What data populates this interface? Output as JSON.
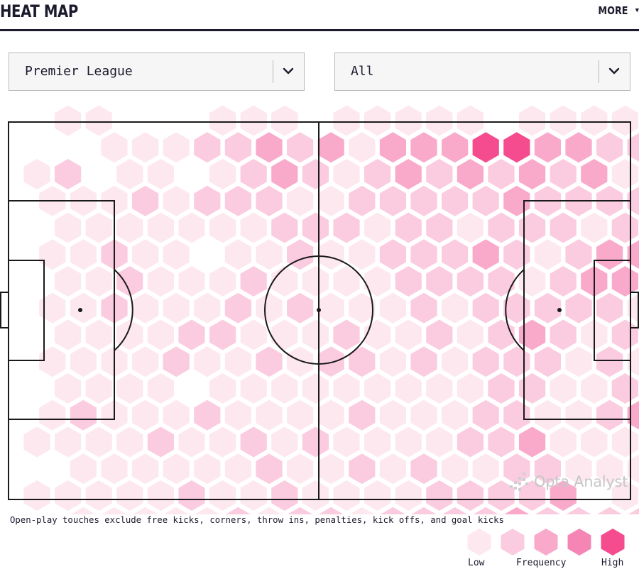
{
  "header": {
    "title": "HEAT MAP",
    "more_label": "MORE"
  },
  "filters": {
    "competition": {
      "value": "Premier League"
    },
    "scope": {
      "value": "All"
    }
  },
  "heatmap": {
    "levels": [
      0,
      1,
      2,
      3,
      4,
      5
    ],
    "colors": [
      "#ffffff",
      "#fde8ef",
      "#fbcce0",
      "#f9aacb",
      "#f585b5",
      "#f54b8f"
    ],
    "rows": [
      [
        0,
        1,
        1,
        0,
        0,
        0,
        1,
        1,
        1,
        0,
        1,
        1,
        1,
        1,
        1,
        0,
        1,
        1,
        1,
        1,
        1
      ],
      [
        0,
        0,
        1,
        1,
        1,
        2,
        2,
        3,
        2,
        3,
        1,
        3,
        3,
        3,
        5,
        5,
        3,
        3,
        2,
        2,
        0
      ],
      [
        1,
        2,
        0,
        1,
        1,
        0,
        1,
        2,
        3,
        2,
        1,
        2,
        3,
        2,
        3,
        2,
        3,
        2,
        3,
        1,
        1
      ],
      [
        1,
        1,
        1,
        2,
        1,
        2,
        2,
        2,
        1,
        1,
        2,
        2,
        2,
        2,
        2,
        3,
        2,
        2,
        2,
        2,
        1
      ],
      [
        0,
        1,
        1,
        1,
        1,
        1,
        1,
        1,
        2,
        2,
        2,
        1,
        2,
        2,
        1,
        2,
        2,
        2,
        1,
        2,
        1
      ],
      [
        1,
        1,
        2,
        1,
        1,
        0,
        1,
        1,
        2,
        1,
        1,
        2,
        2,
        2,
        3,
        2,
        1,
        2,
        3,
        3,
        3
      ],
      [
        0,
        1,
        1,
        2,
        1,
        1,
        1,
        2,
        1,
        1,
        1,
        1,
        2,
        2,
        2,
        2,
        1,
        2,
        3,
        3,
        2
      ],
      [
        1,
        1,
        2,
        1,
        1,
        1,
        2,
        1,
        2,
        1,
        1,
        1,
        2,
        1,
        2,
        2,
        2,
        2,
        2,
        1,
        2
      ],
      [
        0,
        1,
        1,
        1,
        1,
        2,
        2,
        1,
        1,
        1,
        2,
        1,
        1,
        2,
        1,
        2,
        3,
        2,
        1,
        2,
        1
      ],
      [
        1,
        1,
        1,
        1,
        2,
        1,
        1,
        2,
        1,
        2,
        2,
        1,
        2,
        1,
        2,
        2,
        2,
        1,
        2,
        1,
        2
      ],
      [
        0,
        1,
        1,
        1,
        1,
        0,
        1,
        1,
        1,
        1,
        1,
        1,
        1,
        1,
        1,
        2,
        2,
        1,
        1,
        2,
        1
      ],
      [
        1,
        2,
        1,
        1,
        1,
        2,
        1,
        1,
        1,
        1,
        2,
        1,
        1,
        1,
        2,
        2,
        1,
        1,
        2,
        3,
        1
      ],
      [
        1,
        1,
        1,
        1,
        2,
        1,
        1,
        2,
        1,
        2,
        1,
        1,
        1,
        1,
        2,
        2,
        3,
        1,
        1,
        1,
        2
      ],
      [
        0,
        1,
        1,
        1,
        1,
        1,
        1,
        2,
        1,
        1,
        2,
        1,
        2,
        1,
        1,
        2,
        2,
        1,
        1,
        1,
        1
      ],
      [
        1,
        1,
        1,
        1,
        1,
        2,
        1,
        1,
        2,
        1,
        1,
        1,
        1,
        2,
        2,
        2,
        2,
        3,
        0,
        1,
        1
      ],
      [
        0,
        1,
        1,
        1,
        1,
        1,
        2,
        1,
        2,
        2,
        1,
        2,
        2,
        2,
        2,
        3,
        2,
        2,
        2,
        2,
        1
      ],
      [
        1,
        1,
        1,
        1,
        1,
        2,
        2,
        2,
        3,
        3,
        2,
        2,
        3,
        4,
        4,
        4,
        4,
        5,
        2,
        2,
        1
      ],
      [
        0,
        1,
        1,
        1,
        1,
        1,
        1,
        2,
        2,
        1,
        1,
        1,
        2,
        2,
        2,
        2,
        2,
        2,
        1,
        1,
        0
      ]
    ]
  },
  "note": "Open-play touches exclude free kicks, corners, throw ins, penalties, kick offs, and goal kicks",
  "legend": {
    "low": "Low",
    "frequency": "Frequency",
    "high": "High",
    "colors": [
      "#fde8ef",
      "#fbcce0",
      "#f9aacb",
      "#f585b5",
      "#f54b8f"
    ]
  },
  "watermark": {
    "text": "Opta Analyst",
    "icon": "opta-logo-icon"
  },
  "icons": {
    "more": "caret-down-icon",
    "dropdown": "chevron-down-icon"
  }
}
